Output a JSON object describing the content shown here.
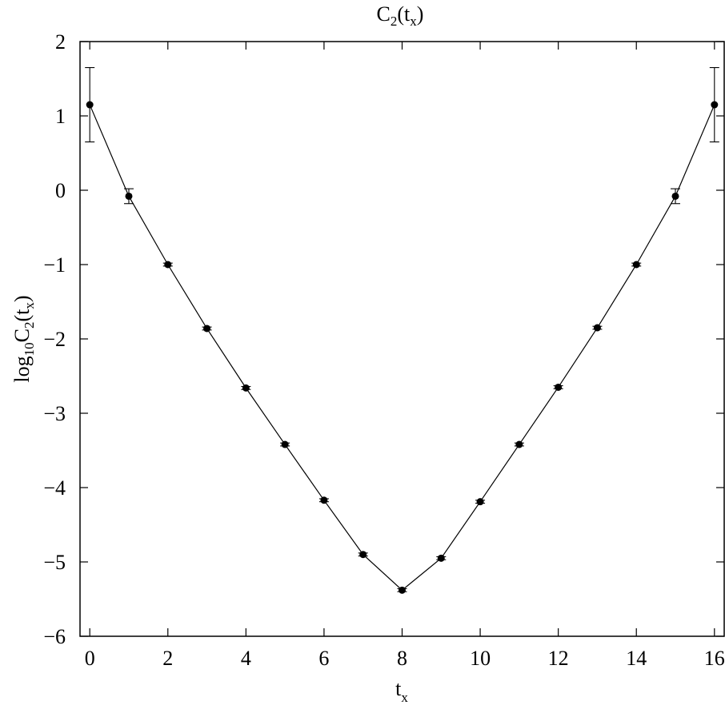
{
  "chart_data": {
    "type": "scatter",
    "title_base": "C",
    "title_sub": "2",
    "title_paren": "(t",
    "title_sub2": "x",
    "title_close": ")",
    "xlabel_base": "t",
    "xlabel_sub": "x",
    "ylabel_base": "log",
    "ylabel_sub": "10",
    "ylabel_mid": "C",
    "ylabel_sub2": "2",
    "ylabel_paren": "(t",
    "ylabel_sub3": "x",
    "ylabel_close": ")",
    "xlim": [
      -0.25,
      16.25
    ],
    "ylim": [
      -6,
      2
    ],
    "xticks": [
      0,
      2,
      4,
      6,
      8,
      10,
      12,
      14,
      16
    ],
    "xtick_labels": [
      "0",
      "2",
      "4",
      "6",
      "8",
      "10",
      "12",
      "14",
      "16"
    ],
    "yticks": [
      2,
      1,
      0,
      -1,
      -2,
      -3,
      -4,
      -5,
      -6
    ],
    "ytick_labels": [
      "2",
      "1",
      "0",
      "−1",
      "−2",
      "−3",
      "−4",
      "−5",
      "−6"
    ],
    "grid": false,
    "legend": "none",
    "connected": true,
    "x": [
      0,
      1,
      2,
      3,
      4,
      5,
      6,
      7,
      8,
      9,
      10,
      11,
      12,
      13,
      14,
      15,
      16
    ],
    "y": [
      1.15,
      -0.08,
      -1.0,
      -1.86,
      -2.66,
      -3.42,
      -4.17,
      -4.9,
      -5.38,
      -4.95,
      -4.19,
      -3.42,
      -2.65,
      -1.85,
      -1.0,
      -0.08,
      1.15
    ],
    "yerr": [
      0.5,
      0.1,
      0.02,
      0.02,
      0.02,
      0.02,
      0.02,
      0.02,
      0.02,
      0.02,
      0.02,
      0.02,
      0.02,
      0.02,
      0.02,
      0.1,
      0.5
    ]
  }
}
